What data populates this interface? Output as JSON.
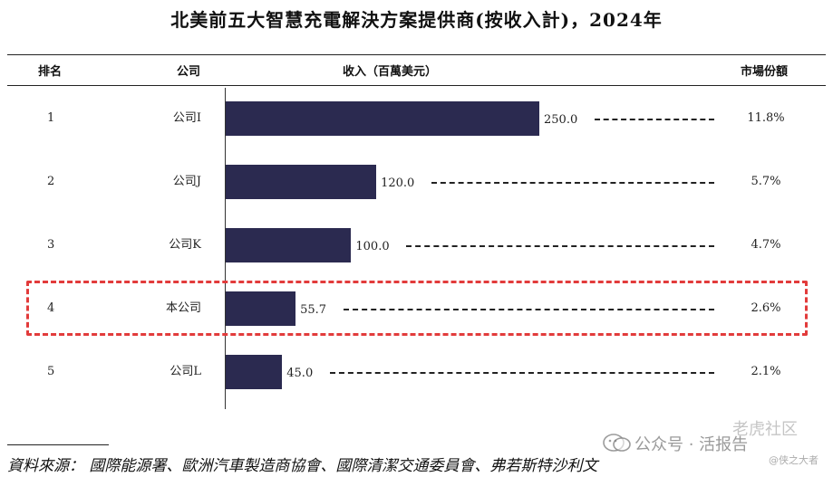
{
  "title": "北美前五大智慧充電解決方案提供商(按收入計)，2024年",
  "headers": {
    "rank": "排名",
    "company": "公司",
    "revenue": "收入（百萬美元）",
    "share": "市場份額"
  },
  "chart_data": {
    "type": "bar",
    "orientation": "horizontal",
    "title": "北美前五大智慧充電解決方案提供商(按收入計)，2024年",
    "xlabel": "收入（百萬美元）",
    "xlim": [
      0,
      250
    ],
    "rows": [
      {
        "rank": "1",
        "company": "公司I",
        "value": 250.0,
        "value_label": "250.0",
        "share": "11.8%"
      },
      {
        "rank": "2",
        "company": "公司J",
        "value": 120.0,
        "value_label": "120.0",
        "share": "5.7%"
      },
      {
        "rank": "3",
        "company": "公司K",
        "value": 100.0,
        "value_label": "100.0",
        "share": "4.7%"
      },
      {
        "rank": "4",
        "company": "本公司",
        "value": 55.7,
        "value_label": "55.7",
        "share": "2.6%"
      },
      {
        "rank": "5",
        "company": "公司L",
        "value": 45.0,
        "value_label": "45.0",
        "share": "2.1%"
      }
    ],
    "highlight_rank": "4",
    "bar_color": "#2b2a50",
    "highlight_color": "#e23b3b"
  },
  "source": "資料來源：  國際能源署、歐洲汽車製造商協會、國際清潔交通委員會、弗若斯特沙利文",
  "watermarks": {
    "wechat": "公众号 · 活报告",
    "site": "老虎社区",
    "user": "@侠之大者"
  }
}
